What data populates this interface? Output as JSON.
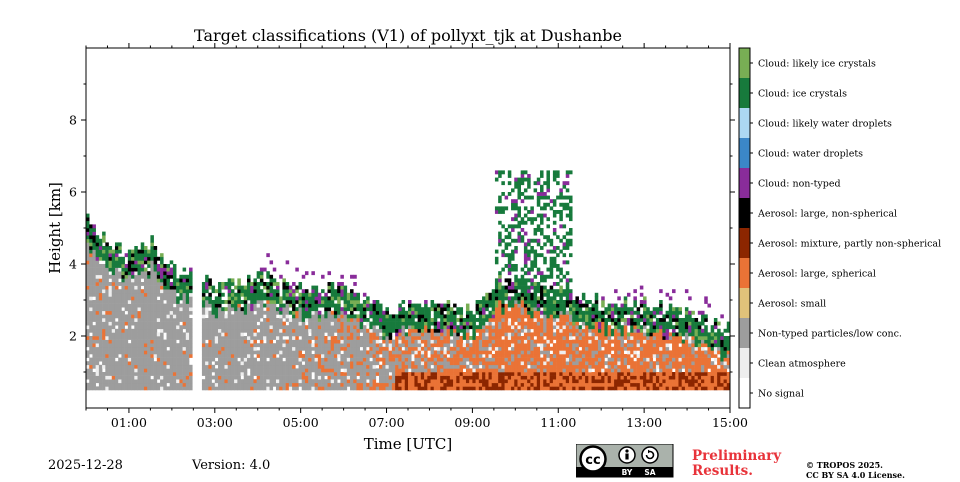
{
  "chart_data": {
    "type": "heatmap",
    "title": "Target classifications (V1) of pollyxt_tjk at Dushanbe",
    "xlabel": "Time [UTC]",
    "ylabel": "Height [km]",
    "xlim": [
      0,
      15
    ],
    "ylim": [
      0,
      10
    ],
    "x_ticks": [
      {
        "value": 1,
        "label": "01:00"
      },
      {
        "value": 3,
        "label": "03:00"
      },
      {
        "value": 5,
        "label": "05:00"
      },
      {
        "value": 7,
        "label": "07:00"
      },
      {
        "value": 9,
        "label": "09:00"
      },
      {
        "value": 11,
        "label": "11:00"
      },
      {
        "value": 13,
        "label": "13:00"
      },
      {
        "value": 15,
        "label": "15:00"
      }
    ],
    "y_ticks": [
      {
        "value": 2,
        "label": "2"
      },
      {
        "value": 4,
        "label": "4"
      },
      {
        "value": 6,
        "label": "6"
      },
      {
        "value": 8,
        "label": "8"
      }
    ],
    "classes": [
      {
        "label": "No signal",
        "color": "#ffffff"
      },
      {
        "label": "Clean atmosphere",
        "color": "#eeeeee"
      },
      {
        "label": "Non-typed particles/low conc.",
        "color": "#9d9d9d"
      },
      {
        "label": "Aerosol: small",
        "color": "#e0c27a"
      },
      {
        "label": "Aerosol: large, spherical",
        "color": "#ea7336"
      },
      {
        "label": "Aerosol: mixture, partly non-spherical",
        "color": "#8c2600"
      },
      {
        "label": "Aerosol: large, non-spherical",
        "color": "#000000"
      },
      {
        "label": "Cloud: non-typed",
        "color": "#892c9a"
      },
      {
        "label": "Cloud: water droplets",
        "color": "#3b87c8"
      },
      {
        "label": "Cloud: likely water droplets",
        "color": "#acd8f3"
      },
      {
        "label": "Cloud: ice crystals",
        "color": "#177a3c"
      },
      {
        "label": "Cloud: likely ice crystals",
        "color": "#78ae54"
      }
    ],
    "layer_top_km": [
      {
        "time": 0.0,
        "height": 5.0
      },
      {
        "time": 0.3,
        "height": 4.5
      },
      {
        "time": 0.6,
        "height": 4.2
      },
      {
        "time": 1.0,
        "height": 3.9
      },
      {
        "time": 1.5,
        "height": 4.3
      },
      {
        "time": 2.0,
        "height": 3.5
      },
      {
        "time": 2.5,
        "height": 3.4
      },
      {
        "time": 3.0,
        "height": 3.1
      },
      {
        "time": 4.0,
        "height": 3.3
      },
      {
        "time": 5.0,
        "height": 3.0
      },
      {
        "time": 6.0,
        "height": 3.0
      },
      {
        "time": 7.0,
        "height": 2.4
      },
      {
        "time": 8.0,
        "height": 2.7
      },
      {
        "time": 9.0,
        "height": 2.3
      },
      {
        "time": 9.5,
        "height": 3.2
      },
      {
        "time": 10.0,
        "height": 3.2
      },
      {
        "time": 11.0,
        "height": 3.0
      },
      {
        "time": 12.0,
        "height": 2.6
      },
      {
        "time": 13.0,
        "height": 2.6
      },
      {
        "time": 14.0,
        "height": 2.3
      },
      {
        "time": 15.0,
        "height": 1.8
      }
    ],
    "data_gap_utc": [
      2.52,
      2.66
    ],
    "lowest_range_km": 0.5
  },
  "footer": {
    "date": "2025-12-28",
    "version": "Version: 4.0",
    "preliminary_line1": "Preliminary",
    "preliminary_line2": "Results.",
    "copyright_line1": "© TROPOS 2025.",
    "copyright_line2": "CC BY SA 4.0 License.",
    "license_badge_text": "cc",
    "license_by": "BY",
    "license_sa": "SA"
  }
}
